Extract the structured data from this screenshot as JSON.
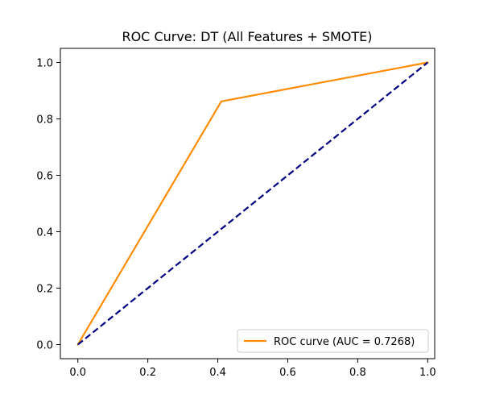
{
  "chart_data": {
    "type": "line",
    "title": "ROC Curve: DT (All Features + SMOTE)",
    "xlabel": "",
    "ylabel": "",
    "xlim": [
      -0.05,
      1.02
    ],
    "ylim": [
      -0.05,
      1.05
    ],
    "x_ticks": [
      0.0,
      0.2,
      0.4,
      0.6,
      0.8,
      1.0
    ],
    "x_tick_labels": [
      "0.0",
      "0.2",
      "0.4",
      "0.6",
      "0.8",
      "1.0"
    ],
    "y_ticks": [
      0.0,
      0.2,
      0.4,
      0.6,
      0.8,
      1.0
    ],
    "y_tick_labels": [
      "0.0",
      "0.2",
      "0.4",
      "0.6",
      "0.8",
      "1.0"
    ],
    "grid": false,
    "legend_position": "lower-right",
    "series": [
      {
        "name": "ROC curve (AUC = 0.7268)",
        "color": "#ff8c00",
        "style": "solid",
        "x": [
          0.0,
          0.41,
          1.0
        ],
        "y": [
          0.0,
          0.862,
          1.0
        ]
      },
      {
        "color": "#000080",
        "style": "dashed",
        "x": [
          0.0,
          1.0
        ],
        "y": [
          0.0,
          1.0
        ]
      }
    ]
  }
}
